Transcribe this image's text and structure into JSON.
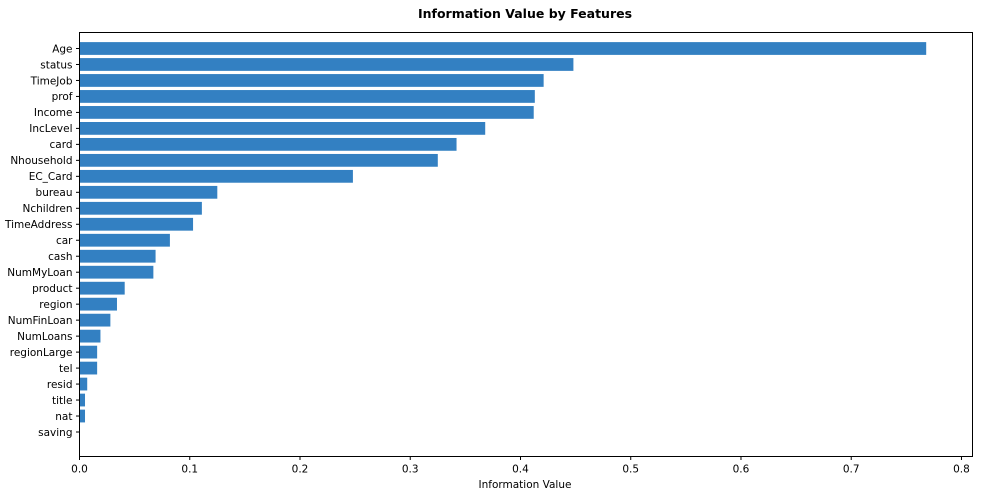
{
  "chart_data": {
    "type": "bar",
    "orientation": "horizontal",
    "title": "Information Value by Features",
    "xlabel": "Information Value",
    "ylabel": "",
    "xlim": [
      0,
      0.81
    ],
    "xticks": [
      0,
      0.1,
      0.2,
      0.3,
      0.4,
      0.5,
      0.6,
      0.7,
      0.8
    ],
    "xtick_labels": [
      "0.0",
      "0.1",
      "0.2",
      "0.3",
      "0.4",
      "0.5",
      "0.6",
      "0.7",
      "0.8"
    ],
    "grid": false,
    "bar_color": "#3380c2",
    "categories": [
      "Age",
      "status",
      "TimeJob",
      "prof",
      "Income",
      "IncLevel",
      "card",
      "Nhousehold",
      "EC_Card",
      "bureau",
      "Nchildren",
      "TimeAddress",
      "car",
      "cash",
      "NumMyLoan",
      "product",
      "region",
      "NumFinLoan",
      "NumLoans",
      "regionLarge",
      "tel",
      "resid",
      "title",
      "nat",
      "saving"
    ],
    "values": [
      0.768,
      0.448,
      0.421,
      0.413,
      0.412,
      0.368,
      0.342,
      0.325,
      0.248,
      0.125,
      0.111,
      0.103,
      0.082,
      0.069,
      0.067,
      0.041,
      0.034,
      0.028,
      0.019,
      0.016,
      0.016,
      0.007,
      0.005,
      0.005,
      0.0
    ]
  }
}
